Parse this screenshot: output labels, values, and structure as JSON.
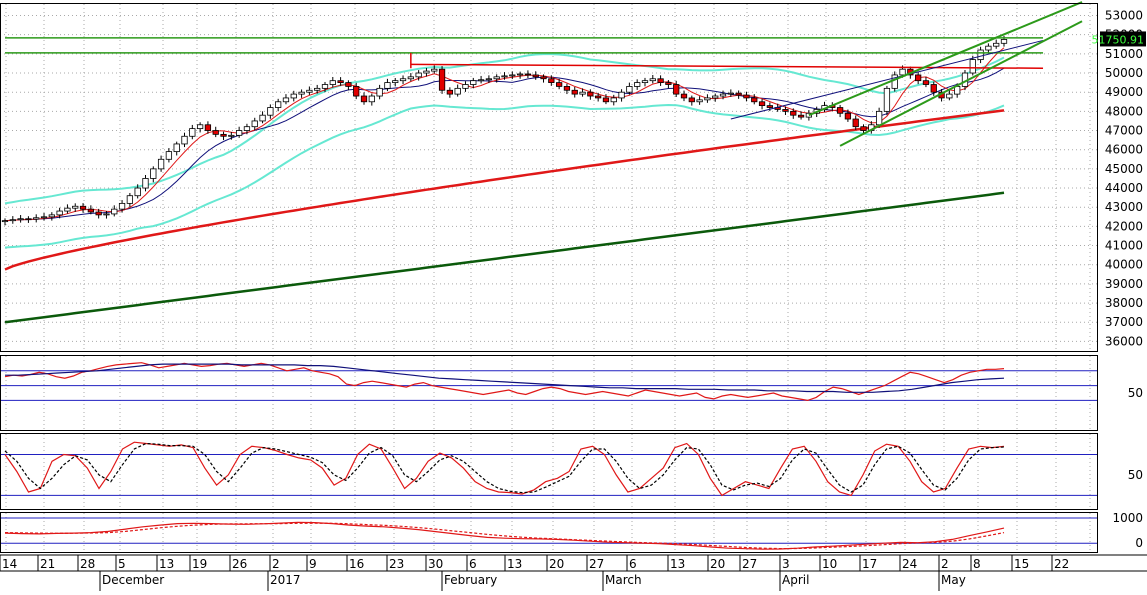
{
  "colors": {
    "background": "#ffffff",
    "grid": "#a9a9a9",
    "border": "#000000",
    "candle_up": "#ffffff",
    "candle_down": "#e00000",
    "bollinger": "#66e8d2",
    "ma_short": "#e01818",
    "ma_mid": "#10107a",
    "ma_200": "#e01818",
    "ma_long": "#0b5a0b",
    "trend_green": "#2c9a1a",
    "price_tag_bg": "#000000",
    "price_tag_fg": "#3cff3c",
    "level_blue": "#2020c0"
  },
  "chart_data": [
    {
      "type": "candlestick",
      "panel": "price",
      "ylim": [
        35500,
        53600
      ],
      "y_ticks": [
        36000,
        37000,
        38000,
        39000,
        40000,
        41000,
        42000,
        43000,
        44000,
        45000,
        46000,
        47000,
        48000,
        49000,
        50000,
        51000,
        52000,
        53000
      ],
      "y_tick_labels": [
        "36000",
        "37000",
        "38000",
        "39000",
        "40000",
        "41000",
        "42000",
        "43000",
        "44000",
        "45000",
        "46000",
        "47000",
        "48000",
        "49000",
        "50000",
        "51000",
        "52000",
        "53000"
      ],
      "last_price_label": "51750.91",
      "last_price": 51750.91,
      "close": [
        42300,
        42350,
        42400,
        42380,
        42450,
        42500,
        42600,
        42800,
        42950,
        43050,
        42900,
        42750,
        42600,
        42650,
        42900,
        43200,
        43600,
        44000,
        44500,
        45000,
        45500,
        45900,
        46300,
        46700,
        47100,
        47300,
        47000,
        46800,
        46700,
        46750,
        47000,
        47200,
        47500,
        47800,
        48200,
        48500,
        48700,
        48900,
        49000,
        49100,
        49200,
        49400,
        49600,
        49500,
        49300,
        48800,
        48500,
        48800,
        49200,
        49500,
        49600,
        49700,
        49800,
        50000,
        50100,
        50200,
        49100,
        48900,
        49200,
        49400,
        49600,
        49650,
        49700,
        49800,
        49850,
        49900,
        49950,
        49900,
        49800,
        49700,
        49500,
        49300,
        49100,
        48900,
        49000,
        48800,
        48700,
        48500,
        48700,
        49000,
        49300,
        49500,
        49600,
        49700,
        49500,
        49400,
        48900,
        48700,
        48500,
        48600,
        48700,
        48800,
        48900,
        48950,
        48850,
        48700,
        48500,
        48300,
        48200,
        48100,
        48000,
        47800,
        47700,
        47900,
        48100,
        48300,
        48200,
        47900,
        47600,
        47200,
        47000,
        47300,
        48000,
        49200,
        49900,
        50200,
        49900,
        49600,
        49400,
        49000,
        48700,
        48900,
        49300,
        50000,
        50700,
        51200,
        51400,
        51550,
        51750.91
      ]
    },
    {
      "type": "line",
      "panel": "rsi",
      "ylim": [
        0,
        100
      ],
      "y_ticks": [
        50
      ],
      "y_tick_labels": [
        "50"
      ],
      "levels": [
        40,
        60,
        80
      ],
      "series": [
        {
          "values": [
            72,
            74,
            73,
            75,
            78,
            76,
            72,
            70,
            73,
            78,
            80,
            83,
            86,
            88,
            89,
            90,
            91,
            88,
            84,
            86,
            88,
            90,
            88,
            86,
            87,
            89,
            90,
            88,
            86,
            88,
            90,
            88,
            84,
            80,
            82,
            84,
            80,
            78,
            76,
            72,
            62,
            60,
            64,
            66,
            64,
            62,
            60,
            58,
            62,
            64,
            60,
            58,
            56,
            54,
            52,
            50,
            48,
            50,
            52,
            54,
            50,
            48,
            52,
            56,
            58,
            56,
            52,
            50,
            48,
            50,
            52,
            50,
            48,
            46,
            50,
            54,
            52,
            50,
            48,
            46,
            48,
            50,
            44,
            42,
            46,
            48,
            46,
            44,
            46,
            48,
            50,
            46,
            44,
            42,
            40,
            44,
            52,
            58,
            56,
            52,
            48,
            52,
            56,
            60,
            66,
            72,
            78,
            76,
            72,
            68,
            64,
            68,
            74,
            78,
            80,
            82,
            82,
            83
          ]
        },
        {
          "values": [
            74,
            74,
            75,
            76,
            77,
            78,
            79,
            80,
            82,
            84,
            86,
            88,
            89,
            89,
            89,
            89,
            89,
            89,
            88,
            88,
            88,
            88,
            88,
            87,
            87,
            86,
            84,
            82,
            80,
            78,
            76,
            74,
            72,
            70,
            69,
            68,
            67,
            66,
            65,
            64,
            63,
            62,
            61,
            60,
            59,
            58,
            57,
            57,
            56,
            56,
            56,
            56,
            55,
            55,
            55,
            54,
            54,
            54,
            53,
            53,
            53,
            52,
            52,
            52,
            51,
            51,
            51,
            52,
            53,
            55,
            58,
            61,
            64,
            66,
            68,
            69,
            70
          ]
        }
      ]
    },
    {
      "type": "line",
      "panel": "stochastic",
      "ylim": [
        0,
        110
      ],
      "y_ticks": [
        50
      ],
      "y_tick_labels": [
        "50"
      ],
      "levels": [
        20,
        80
      ],
      "series": [
        {
          "values": [
            80,
            55,
            25,
            30,
            70,
            80,
            78,
            60,
            30,
            55,
            88,
            98,
            96,
            94,
            92,
            94,
            90,
            60,
            35,
            50,
            80,
            92,
            90,
            86,
            80,
            75,
            72,
            60,
            35,
            45,
            80,
            95,
            88,
            60,
            30,
            45,
            70,
            82,
            75,
            60,
            40,
            30,
            25,
            24,
            22,
            28,
            40,
            45,
            55,
            88,
            92,
            80,
            50,
            25,
            30,
            45,
            60,
            90,
            96,
            80,
            45,
            20,
            30,
            40,
            35,
            30,
            60,
            88,
            92,
            70,
            40,
            25,
            20,
            50,
            85,
            95,
            92,
            70,
            40,
            25,
            30,
            60,
            88,
            92,
            90,
            92
          ]
        },
        {
          "values": [
            85,
            70,
            45,
            30,
            45,
            65,
            78,
            72,
            50,
            40,
            65,
            88,
            96,
            95,
            93,
            93,
            92,
            80,
            55,
            40,
            60,
            82,
            90,
            88,
            84,
            80,
            76,
            68,
            50,
            42,
            60,
            82,
            90,
            78,
            50,
            40,
            55,
            72,
            78,
            70,
            55,
            40,
            30,
            26,
            24,
            25,
            32,
            40,
            48,
            70,
            88,
            88,
            70,
            45,
            30,
            35,
            50,
            72,
            90,
            88,
            65,
            35,
            28,
            35,
            38,
            33,
            45,
            72,
            88,
            82,
            58,
            35,
            25,
            35,
            65,
            88,
            92,
            82,
            58,
            35,
            28,
            45,
            72,
            88,
            90,
            91
          ]
        }
      ]
    },
    {
      "type": "line",
      "panel": "momentum",
      "ylim": [
        -350,
        1200
      ],
      "y_ticks": [
        0,
        1000
      ],
      "y_tick_labels": [
        "0",
        "1000"
      ],
      "levels": [
        0,
        1000
      ],
      "series": [
        {
          "values": [
            400,
            380,
            370,
            390,
            400,
            420,
            470,
            560,
            650,
            720,
            780,
            790,
            780,
            760,
            750,
            770,
            800,
            830,
            820,
            780,
            720,
            680,
            650,
            600,
            540,
            460,
            380,
            300,
            230,
            200,
            180,
            170,
            150,
            120,
            80,
            40,
            20,
            0,
            -20,
            -60,
            -100,
            -150,
            -200,
            -220,
            -240,
            -230,
            -200,
            -150,
            -120,
            -80,
            -40,
            0,
            30,
            20,
            60,
            150,
            300,
            450,
            600
          ]
        },
        {
          "values": [
            420,
            410,
            400,
            395,
            398,
            405,
            420,
            470,
            540,
            610,
            670,
            720,
            750,
            765,
            770,
            775,
            780,
            790,
            795,
            790,
            770,
            740,
            710,
            670,
            620,
            560,
            490,
            420,
            350,
            290,
            240,
            200,
            170,
            140,
            110,
            80,
            50,
            25,
            5,
            -20,
            -50,
            -90,
            -130,
            -170,
            -200,
            -215,
            -210,
            -190,
            -160,
            -130,
            -100,
            -60,
            -20,
            10,
            30,
            80,
            170,
            290,
            420
          ]
        }
      ]
    }
  ],
  "x_axis": {
    "day_labels": [
      "14",
      "21",
      "28",
      "5",
      "13",
      "19",
      "26",
      "2",
      "9",
      "16",
      "23",
      "30",
      "6",
      "13",
      "20",
      "27",
      "6",
      "13",
      "20",
      "27",
      "3",
      "10",
      "17",
      "24",
      "2",
      "8",
      "15",
      "22"
    ],
    "month_labels": [
      "December",
      "2017",
      "February",
      "March",
      "April",
      "May"
    ]
  }
}
